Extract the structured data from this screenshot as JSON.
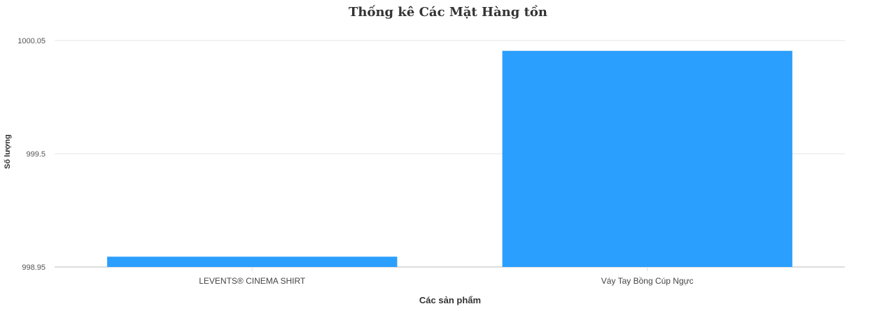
{
  "chart_data": {
    "type": "bar",
    "title": "Thống kê Các Mặt Hàng tồn",
    "xlabel": "Các sản phẩm",
    "ylabel": "Số lượng",
    "categories": [
      "LEVENTS® CINEMA SHIRT",
      "Váy Tay Bồng Cúp Ngực"
    ],
    "values": [
      999.0,
      1000.0
    ],
    "ylim": [
      998.95,
      1000.05
    ],
    "yticks": [
      "998.95",
      "999.5",
      "1000.05"
    ],
    "ytick_values": [
      998.95,
      999.5,
      1000.05
    ],
    "grid": true,
    "colors": {
      "bar": "#2b9ffe",
      "grid": "#e6e6e6",
      "axis": "#dddddd"
    }
  }
}
